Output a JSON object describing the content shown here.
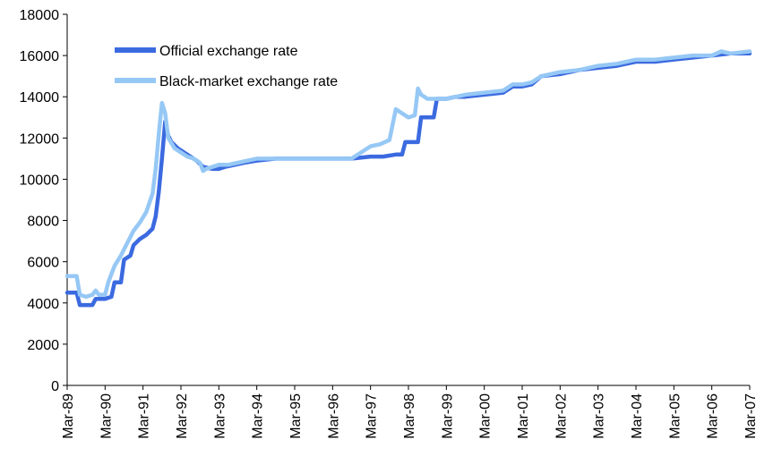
{
  "chart_data": {
    "type": "line",
    "title": "",
    "xlabel": "",
    "ylabel": "",
    "ylim": [
      0,
      18000
    ],
    "yticks": [
      0,
      2000,
      4000,
      6000,
      8000,
      10000,
      12000,
      14000,
      16000,
      18000
    ],
    "x_tick_labels": [
      "Mar-89",
      "Mar-90",
      "Mar-91",
      "Mar-92",
      "Mar-93",
      "Mar-94",
      "Mar-95",
      "Mar-96",
      "Mar-97",
      "Mar-98",
      "Mar-99",
      "Mar-00",
      "Mar-01",
      "Mar-02",
      "Mar-03",
      "Mar-04",
      "Mar-05",
      "Mar-06",
      "Mar-07"
    ],
    "xlim": [
      "1989-03",
      "2007-03"
    ],
    "grid": false,
    "legend_placement": "top-left",
    "series": [
      {
        "name": "Official exchange rate",
        "color": "#3b6ae0",
        "points": [
          [
            "1989-03",
            4500
          ],
          [
            "1989-06",
            4500
          ],
          [
            "1989-07",
            3900
          ],
          [
            "1989-09",
            3900
          ],
          [
            "1989-11",
            3900
          ],
          [
            "1989-12",
            4200
          ],
          [
            "1990-03",
            4200
          ],
          [
            "1990-05",
            4300
          ],
          [
            "1990-06",
            5000
          ],
          [
            "1990-08",
            5000
          ],
          [
            "1990-09",
            6100
          ],
          [
            "1990-11",
            6300
          ],
          [
            "1990-12",
            6800
          ],
          [
            "1991-02",
            7100
          ],
          [
            "1991-04",
            7300
          ],
          [
            "1991-06",
            7600
          ],
          [
            "1991-07",
            8200
          ],
          [
            "1991-08",
            9400
          ],
          [
            "1991-09",
            11000
          ],
          [
            "1991-10",
            12800
          ],
          [
            "1991-11",
            12100
          ],
          [
            "1991-12",
            11800
          ],
          [
            "1992-02",
            11500
          ],
          [
            "1992-04",
            11300
          ],
          [
            "1992-06",
            11100
          ],
          [
            "1992-08",
            10900
          ],
          [
            "1992-10",
            10600
          ],
          [
            "1993-01",
            10500
          ],
          [
            "1993-03",
            10500
          ],
          [
            "1993-05",
            10600
          ],
          [
            "1993-08",
            10700
          ],
          [
            "1993-11",
            10800
          ],
          [
            "1994-03",
            10900
          ],
          [
            "1994-06",
            10950
          ],
          [
            "1994-09",
            11000
          ],
          [
            "1995-03",
            11000
          ],
          [
            "1996-03",
            11000
          ],
          [
            "1996-09",
            11000
          ],
          [
            "1997-03",
            11100
          ],
          [
            "1997-07",
            11100
          ],
          [
            "1997-11",
            11200
          ],
          [
            "1998-01",
            11200
          ],
          [
            "1998-02",
            11800
          ],
          [
            "1998-06",
            11800
          ],
          [
            "1998-07",
            13000
          ],
          [
            "1998-11",
            13000
          ],
          [
            "1998-12",
            13900
          ],
          [
            "1999-03",
            13900
          ],
          [
            "1999-06",
            14000
          ],
          [
            "1999-09",
            14000
          ],
          [
            "2000-03",
            14100
          ],
          [
            "2000-09",
            14200
          ],
          [
            "2000-12",
            14500
          ],
          [
            "2001-03",
            14500
          ],
          [
            "2001-06",
            14600
          ],
          [
            "2001-09",
            15000
          ],
          [
            "2002-03",
            15100
          ],
          [
            "2002-09",
            15300
          ],
          [
            "2003-03",
            15400
          ],
          [
            "2003-09",
            15500
          ],
          [
            "2004-03",
            15700
          ],
          [
            "2004-09",
            15700
          ],
          [
            "2005-03",
            15800
          ],
          [
            "2005-09",
            15900
          ],
          [
            "2006-03",
            16000
          ],
          [
            "2006-09",
            16100
          ],
          [
            "2007-03",
            16100
          ]
        ]
      },
      {
        "name": "Black-market exchange rate",
        "color": "#96c8f5",
        "points": [
          [
            "1989-03",
            5300
          ],
          [
            "1989-06",
            5300
          ],
          [
            "1989-07",
            4400
          ],
          [
            "1989-09",
            4300
          ],
          [
            "1989-11",
            4400
          ],
          [
            "1989-12",
            4600
          ],
          [
            "1990-01",
            4400
          ],
          [
            "1990-03",
            4400
          ],
          [
            "1990-04",
            5000
          ],
          [
            "1990-06",
            5800
          ],
          [
            "1990-08",
            6300
          ],
          [
            "1990-10",
            6900
          ],
          [
            "1990-12",
            7500
          ],
          [
            "1991-02",
            7900
          ],
          [
            "1991-04",
            8400
          ],
          [
            "1991-06",
            9300
          ],
          [
            "1991-07",
            10500
          ],
          [
            "1991-08",
            12200
          ],
          [
            "1991-09",
            13700
          ],
          [
            "1991-10",
            13200
          ],
          [
            "1991-11",
            12000
          ],
          [
            "1992-01",
            11500
          ],
          [
            "1992-03",
            11300
          ],
          [
            "1992-05",
            11100
          ],
          [
            "1992-07",
            11000
          ],
          [
            "1992-09",
            10800
          ],
          [
            "1992-10",
            10400
          ],
          [
            "1992-11",
            10500
          ],
          [
            "1993-01",
            10600
          ],
          [
            "1993-03",
            10700
          ],
          [
            "1993-06",
            10700
          ],
          [
            "1993-09",
            10800
          ],
          [
            "1993-12",
            10900
          ],
          [
            "1994-03",
            11000
          ],
          [
            "1994-09",
            11000
          ],
          [
            "1995-03",
            11000
          ],
          [
            "1996-03",
            11000
          ],
          [
            "1996-09",
            11000
          ],
          [
            "1996-12",
            11300
          ],
          [
            "1997-03",
            11600
          ],
          [
            "1997-06",
            11700
          ],
          [
            "1997-09",
            11900
          ],
          [
            "1997-11",
            13400
          ],
          [
            "1998-01",
            13200
          ],
          [
            "1998-03",
            13000
          ],
          [
            "1998-05",
            13100
          ],
          [
            "1998-06",
            14400
          ],
          [
            "1998-07",
            14100
          ],
          [
            "1998-09",
            13900
          ],
          [
            "1998-12",
            13900
          ],
          [
            "1999-03",
            13900
          ],
          [
            "1999-06",
            14000
          ],
          [
            "1999-09",
            14100
          ],
          [
            "2000-03",
            14200
          ],
          [
            "2000-09",
            14300
          ],
          [
            "2000-12",
            14600
          ],
          [
            "2001-03",
            14600
          ],
          [
            "2001-06",
            14700
          ],
          [
            "2001-09",
            15000
          ],
          [
            "2002-03",
            15200
          ],
          [
            "2002-09",
            15300
          ],
          [
            "2003-03",
            15500
          ],
          [
            "2003-09",
            15600
          ],
          [
            "2004-03",
            15800
          ],
          [
            "2004-09",
            15800
          ],
          [
            "2005-03",
            15900
          ],
          [
            "2005-09",
            16000
          ],
          [
            "2006-03",
            16000
          ],
          [
            "2006-06",
            16200
          ],
          [
            "2006-09",
            16100
          ],
          [
            "2007-03",
            16200
          ]
        ]
      }
    ]
  }
}
